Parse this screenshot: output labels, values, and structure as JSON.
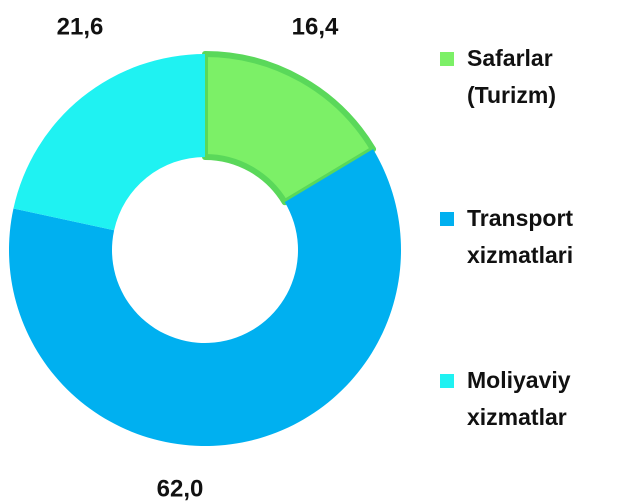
{
  "chart_data": {
    "type": "donut",
    "categories": [
      "Safarlar (Turizm)",
      "Transport xizmatlari",
      "Moliyaviy xizmatlar"
    ],
    "values": [
      16.4,
      62.0,
      21.6
    ],
    "value_labels": [
      "16,4",
      "62,0",
      "21,6"
    ],
    "colors": [
      "#7cf067",
      "#00b0f0",
      "#1ff2f2"
    ],
    "legend": "right"
  }
}
